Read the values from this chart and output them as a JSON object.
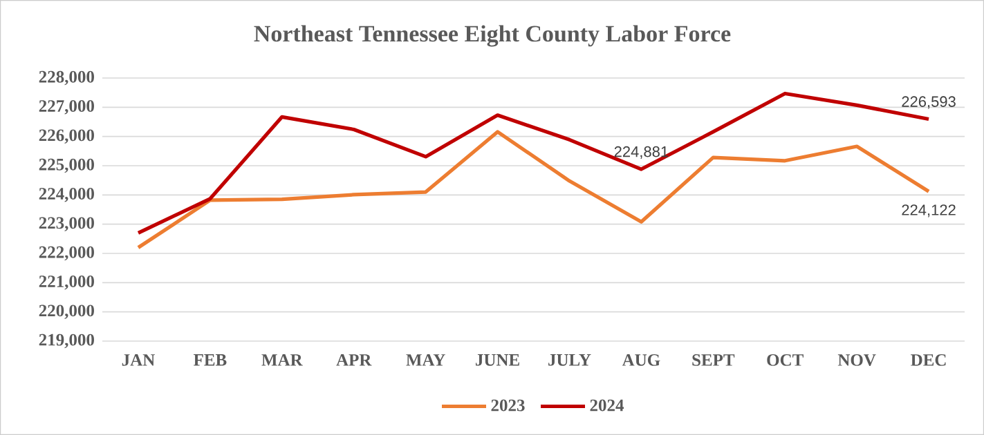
{
  "chart_data": {
    "type": "line",
    "title": "Northeast Tennessee Eight County Labor Force",
    "categories": [
      "JAN",
      "FEB",
      "MAR",
      "APR",
      "MAY",
      "JUNE",
      "JULY",
      "AUG",
      "SEPT",
      "OCT",
      "NOV",
      "DEC"
    ],
    "series": [
      {
        "name": "2023",
        "color": "#ed7d31",
        "values": [
          222200,
          223820,
          223850,
          224010,
          224100,
          226160,
          224480,
          223080,
          225280,
          225170,
          225660,
          224122
        ],
        "value_labels": [
          null,
          null,
          null,
          null,
          null,
          null,
          null,
          null,
          null,
          null,
          null,
          "224,122"
        ]
      },
      {
        "name": "2024",
        "color": "#c00000",
        "values": [
          222700,
          223870,
          226670,
          226240,
          225310,
          226730,
          225890,
          224881,
          226160,
          227470,
          227070,
          226593
        ],
        "value_labels": [
          null,
          null,
          null,
          null,
          null,
          null,
          null,
          "224,881",
          null,
          null,
          null,
          "226,593"
        ]
      }
    ],
    "ylim": [
      219000,
      228000
    ],
    "yticks": [
      {
        "value": 219000,
        "label": "219,000"
      },
      {
        "value": 220000,
        "label": "220,000"
      },
      {
        "value": 221000,
        "label": "221,000"
      },
      {
        "value": 222000,
        "label": "222,000"
      },
      {
        "value": 223000,
        "label": "223,000"
      },
      {
        "value": 224000,
        "label": "224,000"
      },
      {
        "value": 225000,
        "label": "225,000"
      },
      {
        "value": 226000,
        "label": "226,000"
      },
      {
        "value": 227000,
        "label": "227,000"
      },
      {
        "value": 228000,
        "label": "228,000"
      }
    ],
    "grid": "y",
    "legend": "bottom",
    "marker": "none",
    "line_style": "solid"
  }
}
